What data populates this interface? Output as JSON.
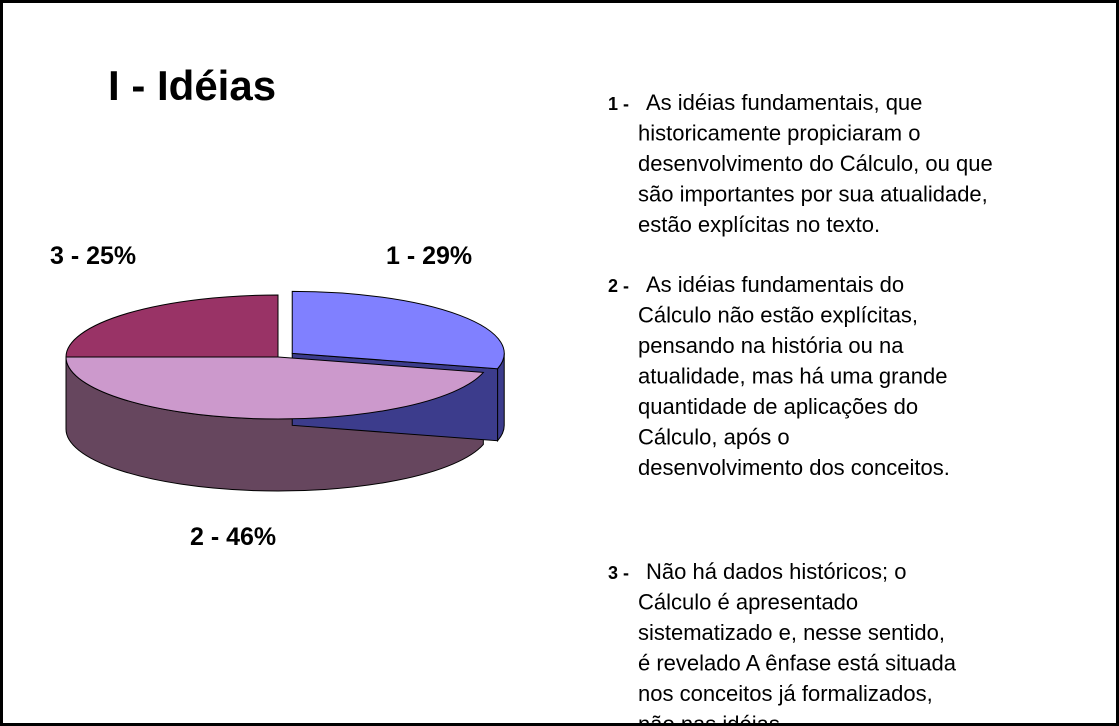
{
  "chart_data": {
    "type": "pie",
    "title": "I - Idéias",
    "values": [
      29,
      46,
      25
    ],
    "value_labels": [
      "1 - 29%",
      "2 - 46%",
      "3 - 25%"
    ],
    "colors": [
      "#8080ff",
      "#cc99cc",
      "#993366"
    ],
    "side_colors": [
      "#3c3c8c",
      "#66465e",
      "#4e1a34"
    ]
  },
  "descriptions": [
    {
      "marker": "1 -",
      "lines": [
        "As idéias fundamentais, que",
        "historicamente propiciaram o",
        "desenvolvimento do Cálculo, ou que",
        "são importantes por sua atualidade,",
        "estão explícitas no texto."
      ]
    },
    {
      "marker": "2 -",
      "lines": [
        "As idéias fundamentais do",
        "Cálculo não estão explícitas,",
        "pensando na história ou na",
        "atualidade, mas há uma grande",
        "quantidade de aplicações do",
        "Cálculo, após o",
        "desenvolvimento dos conceitos."
      ]
    },
    {
      "marker": "3 -",
      "lines": [
        "Não há dados históricos; o",
        "Cálculo é apresentado",
        "sistematizado e, nesse sentido,",
        "é revelado A ênfase está situada",
        "nos conceitos já formalizados,",
        "não nas idéias."
      ]
    }
  ]
}
